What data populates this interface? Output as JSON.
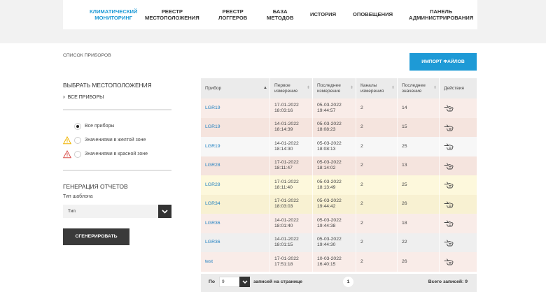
{
  "nav": {
    "items": [
      {
        "line1": "КЛИМАТИЧЕСКИЙ",
        "line2": "МОНИТОРИНГ",
        "active": true
      },
      {
        "line1": "РЕЕСТР",
        "line2": "МЕСТОПОЛОЖЕНИЯ",
        "active": false
      },
      {
        "line1": "РЕЕСТР",
        "line2": "ЛОГГЕРОВ",
        "active": false
      },
      {
        "line1": "БАЗА",
        "line2": "МЕТОДОВ",
        "active": false
      },
      {
        "line1": "ИСТОРИЯ",
        "line2": "",
        "active": false
      },
      {
        "line1": "ОПОВЕЩЕНИЯ",
        "line2": "",
        "active": false
      },
      {
        "line1": "ПАНЕЛЬ",
        "line2": "АДМИНИСТРИРОВАНИЯ",
        "active": false
      }
    ]
  },
  "page": {
    "label": "СПИСОК ПРИБОРОВ",
    "import_button": "ИМПОРТ ФАЙЛОВ"
  },
  "sidebar": {
    "select_location_title": "ВЫБРАТЬ МЕСТОПОЛОЖЕНИЯ",
    "all_devices_link": "ВСЕ ПРИБОРЫ",
    "filters": [
      {
        "label": "Все приборы",
        "checked": true,
        "icon": "none"
      },
      {
        "label": "Значениями в желтой зоне",
        "checked": false,
        "icon": "warning-yellow-icon"
      },
      {
        "label": "Значениями в красной зоне",
        "checked": false,
        "icon": "warning-red-icon"
      }
    ],
    "reports_title": "ГЕНЕРАЦИЯ ОТЧЕТОВ",
    "template_label": "Тип шаблона",
    "template_value": "Тип",
    "generate_button": "СГЕНЕРИРОВАТЬ"
  },
  "table": {
    "headers": [
      {
        "line1": "Прибор",
        "line2": ""
      },
      {
        "line1": "Первое",
        "line2": "измерение"
      },
      {
        "line1": "Последнее",
        "line2": "измерение"
      },
      {
        "line1": "Каналы",
        "line2": "измерения"
      },
      {
        "line1": "Последнее",
        "line2": "значение"
      },
      {
        "line1": "Действия",
        "line2": ""
      }
    ],
    "rows": [
      {
        "device": "LGR19",
        "first_date": "17-01-2022",
        "first_time": "18:03:16",
        "last_date": "05-03-2022",
        "last_time": "19:44:57",
        "channels": "2",
        "last_value": "14",
        "zone": "red"
      },
      {
        "device": "LGR19",
        "first_date": "14-01-2022",
        "first_time": "18:14:39",
        "last_date": "05-03-2022",
        "last_time": "18:08:23",
        "channels": "2",
        "last_value": "15",
        "zone": "red"
      },
      {
        "device": "LGR19",
        "first_date": "14-01-2022",
        "first_time": "18:14:30",
        "last_date": "05-03-2022",
        "last_time": "18:08:13",
        "channels": "2",
        "last_value": "25",
        "zone": "none"
      },
      {
        "device": "LGR28",
        "first_date": "17-01-2022",
        "first_time": "18:11:47",
        "last_date": "05-03-2022",
        "last_time": "18:14:02",
        "channels": "2",
        "last_value": "13",
        "zone": "red"
      },
      {
        "device": "LGR28",
        "first_date": "17-01-2022",
        "first_time": "18:11:40",
        "last_date": "05-03-2022",
        "last_time": "18:13:49",
        "channels": "2",
        "last_value": "25",
        "zone": "yellow"
      },
      {
        "device": "LGR34",
        "first_date": "17-01-2022",
        "first_time": "18:03:03",
        "last_date": "05-03-2022",
        "last_time": "19:44:42",
        "channels": "2",
        "last_value": "26",
        "zone": "yellow"
      },
      {
        "device": "LGR36",
        "first_date": "14-01-2022",
        "first_time": "18:01:40",
        "last_date": "05-03-2022",
        "last_time": "19:44:38",
        "channels": "2",
        "last_value": "18",
        "zone": "red"
      },
      {
        "device": "LGR36",
        "first_date": "14-01-2022",
        "first_time": "18:01:15",
        "last_date": "05-03-2022",
        "last_time": "19:44:30",
        "channels": "2",
        "last_value": "22",
        "zone": "none"
      },
      {
        "device": "test",
        "first_date": "17-01-2022",
        "first_time": "17:51:18",
        "last_date": "10-03-2022",
        "last_time": "16:40:15",
        "channels": "2",
        "last_value": "26",
        "zone": "red"
      }
    ],
    "action_icon": "hand-pointer-icon"
  },
  "pager": {
    "label_po": "По",
    "page_size": "9",
    "per_page_label": "записей на странице",
    "current_page": "1",
    "total_label": "Всего записей: 9"
  },
  "colors": {
    "accent": "#1e9ad6",
    "zone_red": "#f9ece8",
    "zone_red_alt": "#f5e4de",
    "zone_yellow": "#fdf8dc",
    "zone_yellow_alt": "#f8f1d2",
    "zone_none": "#f7f7f7",
    "zone_none_alt": "#efefef"
  }
}
